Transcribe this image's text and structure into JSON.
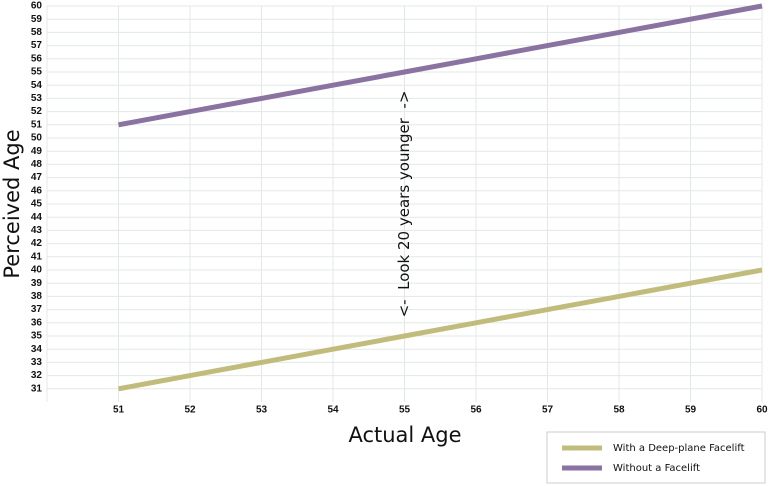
{
  "chart_data": {
    "type": "line",
    "x_label": "Actual Age",
    "y_label": "Perceived Age",
    "annotation": "<-  Look 20 years younger  ->",
    "x": [
      51,
      52,
      53,
      54,
      55,
      56,
      57,
      58,
      59,
      60
    ],
    "series": [
      {
        "name": "With a Deep-plane Facelift",
        "color": "#c2bc7c",
        "values": [
          31,
          32,
          33,
          34,
          35,
          36,
          37,
          38,
          39,
          40
        ]
      },
      {
        "name": "Without a Facelift",
        "color": "#8a72a1",
        "values": [
          51,
          52,
          53,
          54,
          55,
          56,
          57,
          58,
          59,
          60
        ]
      }
    ],
    "xlim": [
      50,
      60
    ],
    "xticks": [
      51,
      52,
      53,
      54,
      55,
      56,
      57,
      58,
      59,
      60
    ],
    "ylim": [
      30,
      60
    ],
    "yticks": [
      31,
      32,
      33,
      34,
      35,
      36,
      37,
      38,
      39,
      40,
      41,
      42,
      43,
      44,
      45,
      46,
      47,
      48,
      49,
      50,
      51,
      52,
      53,
      54,
      55,
      56,
      57,
      58,
      59,
      60
    ],
    "grid": true
  }
}
